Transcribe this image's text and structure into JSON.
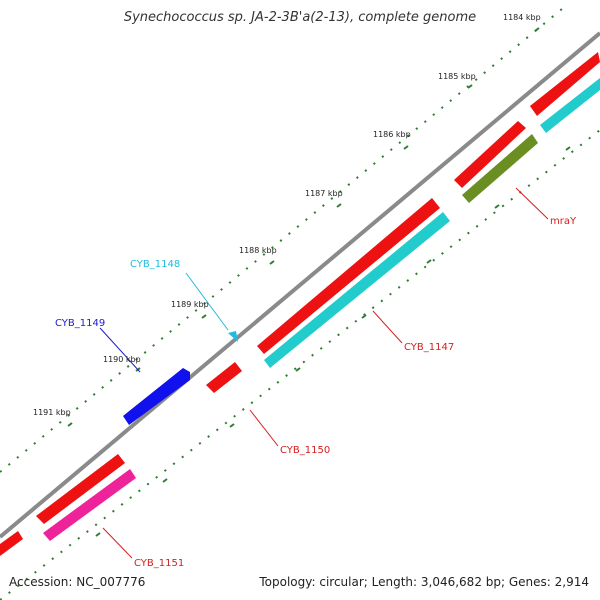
{
  "title": "Synechococcus sp. JA-2-3B'a(2-13), complete genome",
  "footer": {
    "accession": "Accession: NC_007776",
    "summary": "Topology: circular; Length: 3,046,682 bp; Genes: 2,914"
  },
  "scale_ticks": [
    "1184 kbp",
    "1185 kbp",
    "1186 kbp",
    "1187 kbp",
    "1188 kbp",
    "1189 kbp",
    "1190 kbp",
    "1191 kbp"
  ],
  "genes": [
    {
      "label": "mraY",
      "color": "#d42020"
    },
    {
      "label": "CYB_1147",
      "color": "#d42020"
    },
    {
      "label": "CYB_1148",
      "color": "#22bbdd"
    },
    {
      "label": "CYB_1149",
      "color": "#1c1ccc"
    },
    {
      "label": "CYB_1150",
      "color": "#d42020"
    },
    {
      "label": "CYB_1151",
      "color": "#d42020"
    }
  ],
  "colors": {
    "backbone": "#8a8a8a",
    "cds_forward": "#ee1111",
    "cds_reverse": "#1111ee",
    "cds_similarity": "#22cccc",
    "cds_olive": "#6b8e23",
    "cds_pink": "#ee2299",
    "ticks": "#2e7d32"
  }
}
